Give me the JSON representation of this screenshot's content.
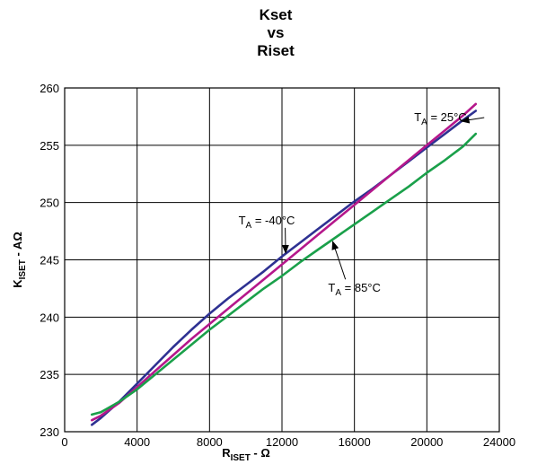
{
  "chart_data": {
    "type": "line",
    "title_lines": [
      "Kset",
      "vs",
      "Riset"
    ],
    "xlabel": {
      "main": "R",
      "sub": "ISET",
      "suffix": " - Ω"
    },
    "ylabel": {
      "main": "K",
      "sub": "ISET",
      "suffix": " - AΩ"
    },
    "xlim": [
      0,
      24000
    ],
    "ylim": [
      230,
      260
    ],
    "xticks": [
      0,
      4000,
      8000,
      12000,
      16000,
      20000,
      24000
    ],
    "yticks": [
      230,
      235,
      240,
      245,
      250,
      255,
      260
    ],
    "grid": true,
    "series": [
      {
        "name": "T_A = -40°C",
        "color": "#2e3192",
        "points": [
          [
            1500,
            230.6
          ],
          [
            2000,
            231.2
          ],
          [
            3000,
            232.6
          ],
          [
            4000,
            234.2
          ],
          [
            5000,
            235.8
          ],
          [
            6000,
            237.4
          ],
          [
            7000,
            238.9
          ],
          [
            8000,
            240.3
          ],
          [
            9000,
            241.6
          ],
          [
            10000,
            242.8
          ],
          [
            11000,
            244.0
          ],
          [
            12000,
            245.3
          ],
          [
            13000,
            246.5
          ],
          [
            14000,
            247.7
          ],
          [
            15000,
            248.9
          ],
          [
            16000,
            250.1
          ],
          [
            17000,
            251.2
          ],
          [
            18000,
            252.4
          ],
          [
            19000,
            253.6
          ],
          [
            20000,
            254.8
          ],
          [
            21000,
            256.0
          ],
          [
            22000,
            257.2
          ],
          [
            22700,
            258.0
          ]
        ]
      },
      {
        "name": "T_A = 25°C",
        "color": "#b5178b",
        "points": [
          [
            1500,
            231.0
          ],
          [
            2000,
            231.4
          ],
          [
            3000,
            232.5
          ],
          [
            4000,
            233.9
          ],
          [
            5000,
            235.3
          ],
          [
            6000,
            236.7
          ],
          [
            7000,
            238.1
          ],
          [
            8000,
            239.4
          ],
          [
            9000,
            240.7
          ],
          [
            10000,
            242.0
          ],
          [
            11000,
            243.3
          ],
          [
            12000,
            244.6
          ],
          [
            13000,
            245.9
          ],
          [
            14000,
            247.2
          ],
          [
            15000,
            248.5
          ],
          [
            16000,
            249.8
          ],
          [
            17000,
            251.1
          ],
          [
            18000,
            252.4
          ],
          [
            19000,
            253.7
          ],
          [
            20000,
            255.0
          ],
          [
            21000,
            256.3
          ],
          [
            22000,
            257.6
          ],
          [
            22700,
            258.6
          ]
        ]
      },
      {
        "name": "T_A = 85°C",
        "color": "#1aa04a",
        "points": [
          [
            1500,
            231.5
          ],
          [
            2000,
            231.7
          ],
          [
            3000,
            232.6
          ],
          [
            4000,
            233.7
          ],
          [
            5000,
            235.0
          ],
          [
            6000,
            236.3
          ],
          [
            7000,
            237.6
          ],
          [
            8000,
            238.9
          ],
          [
            9000,
            240.1
          ],
          [
            10000,
            241.3
          ],
          [
            11000,
            242.5
          ],
          [
            12000,
            243.6
          ],
          [
            13000,
            244.8
          ],
          [
            14000,
            245.9
          ],
          [
            15000,
            247.0
          ],
          [
            16000,
            248.1
          ],
          [
            17000,
            249.2
          ],
          [
            18000,
            250.3
          ],
          [
            19000,
            251.4
          ],
          [
            20000,
            252.6
          ],
          [
            21000,
            253.7
          ],
          [
            22000,
            254.9
          ],
          [
            22700,
            256.0
          ]
        ]
      }
    ],
    "annotations": [
      {
        "main": "T",
        "sub": "A",
        "rest": " = 25°C",
        "text_at": [
          19300,
          257.1
        ],
        "arrow_to": [
          21900,
          257.1
        ],
        "anchor": "start"
      },
      {
        "main": "T",
        "sub": "A",
        "rest": " = -40°C",
        "text_at": [
          9600,
          248.1
        ],
        "arrow_to": [
          12200,
          245.6
        ],
        "anchor": "start"
      },
      {
        "main": "T",
        "sub": "A",
        "rest": " = 85°C",
        "text_at": [
          16000,
          242.2
        ],
        "arrow_to": [
          14800,
          246.6
        ],
        "anchor": "middle"
      }
    ]
  }
}
